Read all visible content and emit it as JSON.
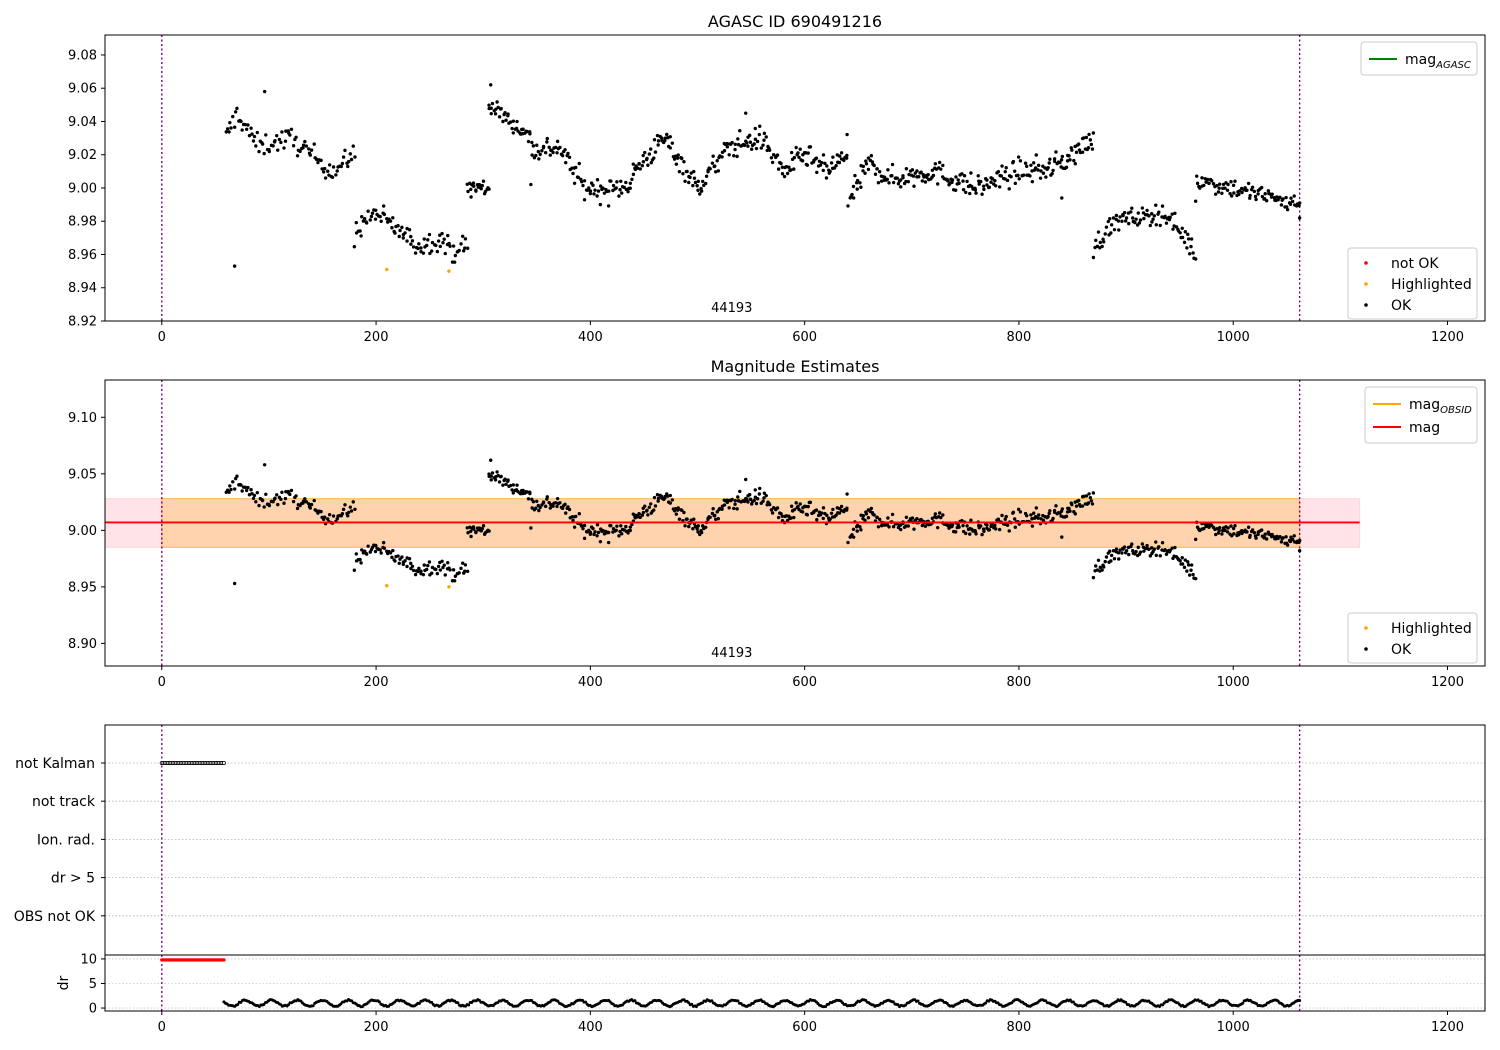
{
  "chart_data": [
    {
      "type": "scatter",
      "title": "AGASC ID 690491216",
      "annotation": "44193",
      "xlim": [
        -53,
        1235
      ],
      "ylim": [
        8.92,
        9.092
      ],
      "x_ticks": [
        0,
        200,
        400,
        600,
        800,
        1000,
        1200
      ],
      "y_ticks": [
        8.92,
        8.94,
        8.96,
        8.98,
        9.0,
        9.02,
        9.04,
        9.06,
        9.08
      ],
      "y_tick_labels": [
        "8.92",
        "8.94",
        "8.96",
        "8.98",
        "9.00",
        "9.02",
        "9.04",
        "9.06",
        "9.08"
      ],
      "vlines": [
        0,
        1062
      ],
      "legend_lines": [
        {
          "label": "mag",
          "sub": "AGASC",
          "color": "#008000"
        }
      ],
      "legend_points": [
        {
          "label": "not OK",
          "color": "#ff0000"
        },
        {
          "label": "Highlighted",
          "color": "#ffa500"
        },
        {
          "label": "OK",
          "color": "#000000"
        }
      ],
      "series": [
        {
          "name": "OK",
          "color": "#000000",
          "segments": [
            {
              "x0": 60,
              "x1": 180,
              "n": 95,
              "knots": [
                [
                  60,
                  9.03
                ],
                [
                  70,
                  9.045
                ],
                [
                  90,
                  9.025
                ],
                [
                  120,
                  9.03
                ],
                [
                  140,
                  9.02
                ],
                [
                  160,
                  9.01
                ],
                [
                  180,
                  9.02
                ]
              ],
              "noise": 0.0065
            },
            {
              "x0": 180,
              "x1": 285,
              "n": 90,
              "knots": [
                [
                  180,
                  8.975
                ],
                [
                  200,
                  8.985
                ],
                [
                  220,
                  8.975
                ],
                [
                  240,
                  8.965
                ],
                [
                  260,
                  8.97
                ],
                [
                  270,
                  8.962
                ],
                [
                  285,
                  8.965
                ]
              ],
              "noise": 0.0065
            },
            {
              "x0": 285,
              "x1": 305,
              "n": 22,
              "knots": [
                [
                  285,
                  9.0
                ],
                [
                  305,
                  9.0
                ]
              ],
              "noise": 0.007
            },
            {
              "x0": 305,
              "x1": 345,
              "n": 40,
              "knots": [
                [
                  305,
                  9.05
                ],
                [
                  320,
                  9.043
                ],
                [
                  345,
                  9.03
                ]
              ],
              "noise": 0.005
            },
            {
              "x0": 345,
              "x1": 440,
              "n": 90,
              "knots": [
                [
                  345,
                  9.022
                ],
                [
                  370,
                  9.025
                ],
                [
                  395,
                  9.0
                ],
                [
                  420,
                  8.998
                ],
                [
                  440,
                  9.005
                ]
              ],
              "noise": 0.007
            },
            {
              "x0": 440,
              "x1": 640,
              "n": 200,
              "knots": [
                [
                  440,
                  9.01
                ],
                [
                  470,
                  9.03
                ],
                [
                  500,
                  9.0
                ],
                [
                  530,
                  9.025
                ],
                [
                  560,
                  9.03
                ],
                [
                  580,
                  9.01
                ],
                [
                  600,
                  9.02
                ],
                [
                  620,
                  9.01
                ],
                [
                  640,
                  9.02
                ]
              ],
              "noise": 0.007
            },
            {
              "x0": 640,
              "x1": 870,
              "n": 230,
              "knots": [
                [
                  640,
                  8.99
                ],
                [
                  660,
                  9.015
                ],
                [
                  680,
                  9.005
                ],
                [
                  720,
                  9.01
                ],
                [
                  760,
                  9.0
                ],
                [
                  800,
                  9.01
                ],
                [
                  830,
                  9.012
                ],
                [
                  850,
                  9.02
                ],
                [
                  870,
                  9.03
                ]
              ],
              "noise": 0.007
            },
            {
              "x0": 870,
              "x1": 965,
              "n": 90,
              "knots": [
                [
                  870,
                  8.965
                ],
                [
                  890,
                  8.98
                ],
                [
                  910,
                  8.982
                ],
                [
                  935,
                  8.985
                ],
                [
                  950,
                  8.975
                ],
                [
                  965,
                  8.96
                ]
              ],
              "noise": 0.006
            },
            {
              "x0": 965,
              "x1": 1062,
              "n": 90,
              "knots": [
                [
                  965,
                  9.005
                ],
                [
                  1000,
                  9.0
                ],
                [
                  1030,
                  8.995
                ],
                [
                  1062,
                  8.99
                ]
              ],
              "noise": 0.006
            }
          ],
          "extra": [
            [
              68,
              8.953
            ],
            [
              96,
              9.058
            ],
            [
              307,
              9.062
            ],
            [
              545,
              9.045
            ],
            [
              840,
              8.994
            ],
            [
              1062,
              8.982
            ]
          ]
        },
        {
          "name": "Highlighted",
          "color": "#ffa500",
          "points": [
            [
              210,
              8.951
            ],
            [
              268,
              8.95
            ]
          ]
        }
      ]
    },
    {
      "type": "scatter",
      "title": "Magnitude Estimates",
      "annotation": "44193",
      "xlim": [
        -53,
        1235
      ],
      "ylim": [
        8.88,
        9.133
      ],
      "x_ticks": [
        0,
        200,
        400,
        600,
        800,
        1000,
        1200
      ],
      "y_ticks": [
        8.9,
        8.95,
        9.0,
        9.05,
        9.1
      ],
      "y_tick_labels": [
        "8.90",
        "8.95",
        "9.00",
        "9.05",
        "9.10"
      ],
      "vlines": [
        0,
        1062
      ],
      "bands": [
        {
          "x0": -53,
          "x1": 1118,
          "y0": 8.985,
          "y1": 9.028,
          "color": "#ffc0cb",
          "opacity": 0.45
        },
        {
          "x0": 0,
          "x1": 1062,
          "y0": 8.985,
          "y1": 9.028,
          "color": "#ffa500",
          "opacity": 0.25
        }
      ],
      "hlines": [
        {
          "y": 9.007,
          "x0": -53,
          "x1": 1118,
          "color": "#ff0000",
          "width": 1.8
        }
      ],
      "legend_lines": [
        {
          "label": "mag",
          "sub": "OBSID",
          "color": "#ffa500"
        },
        {
          "label": "mag",
          "sub": "",
          "color": "#ff0000"
        }
      ],
      "legend_points": [
        {
          "label": "Highlighted",
          "color": "#ffa500"
        },
        {
          "label": "OK",
          "color": "#000000"
        }
      ],
      "reuse_points_from": 0
    },
    {
      "type": "categorical-scatter",
      "xlim": [
        -53,
        1235
      ],
      "categories": [
        "not Kalman",
        "not track",
        "Ion. rad.",
        "dr > 5",
        "OBS not OK"
      ],
      "vlines": [
        0,
        1062
      ],
      "flags": [
        {
          "category": "not Kalman",
          "x0": 0,
          "x1": 58,
          "n": 40
        }
      ]
    },
    {
      "type": "scatter",
      "ylabel": "dr",
      "xlim": [
        -53,
        1235
      ],
      "ylim": [
        -0.6,
        10.8
      ],
      "x_ticks": [
        0,
        200,
        400,
        600,
        800,
        1000,
        1200
      ],
      "x_tick_labels": [
        "0",
        "200",
        "400",
        "600",
        "800",
        "1000",
        "1200"
      ],
      "y_ticks": [
        0,
        5,
        10
      ],
      "y_tick_labels": [
        "0",
        "5",
        "10"
      ],
      "vlines": [
        0,
        1062
      ],
      "red_points": {
        "x0": 0,
        "x1": 58,
        "n": 40,
        "y": 9.8
      },
      "black_points": {
        "x0": 58,
        "x1": 1062,
        "n": 700,
        "base": 1.0,
        "amp": 0.6,
        "period": 24
      }
    }
  ]
}
